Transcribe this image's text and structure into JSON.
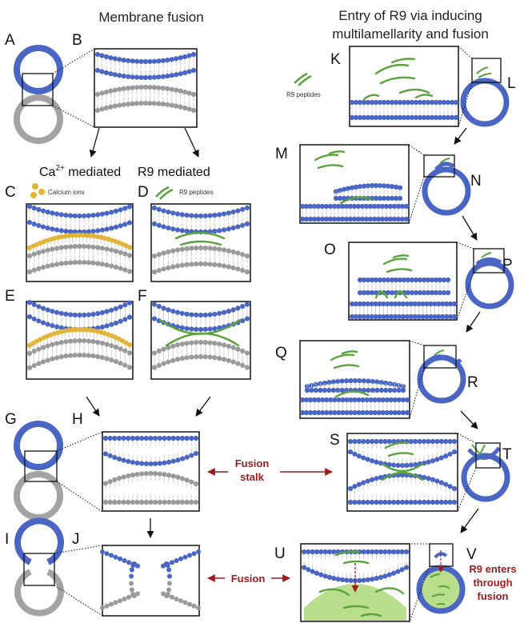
{
  "headers": {
    "membrane_fusion": "Membrane fusion",
    "r9_entry_line1": "Entry of R9 via inducing",
    "r9_entry_line2": "multilamellarity and fusion"
  },
  "panels": [
    "A",
    "B",
    "C",
    "D",
    "E",
    "F",
    "G",
    "H",
    "I",
    "J",
    "K",
    "L",
    "M",
    "N",
    "O",
    "P",
    "Q",
    "R",
    "S",
    "T",
    "U",
    "V"
  ],
  "mechanisms": {
    "ca_mediated_prefix": "Ca",
    "ca_superscript": "2+",
    "ca_mediated_suffix": " mediated",
    "r9_mediated": "R9 mediated"
  },
  "legends": {
    "calcium_ions": "Calcium ions",
    "r9_peptides_d": "R9 peptides",
    "r9_peptides_k": "R9 peptides"
  },
  "annotations": {
    "fusion_stalk_line1": "Fusion",
    "fusion_stalk_line2": "stalk",
    "fusion": "Fusion",
    "r9_enters_line1": "R9 enters",
    "r9_enters_line2": "through",
    "r9_enters_line3": "fusion"
  },
  "colors": {
    "lipid_blue": "#4a66c4",
    "lipid_gray": "#9a9a9a",
    "peptide_green": "#5aa33c",
    "calcium_gold": "#e2b53a",
    "annotation_red": "#9c1b1b",
    "cytosol_green": "#b9de8c"
  }
}
